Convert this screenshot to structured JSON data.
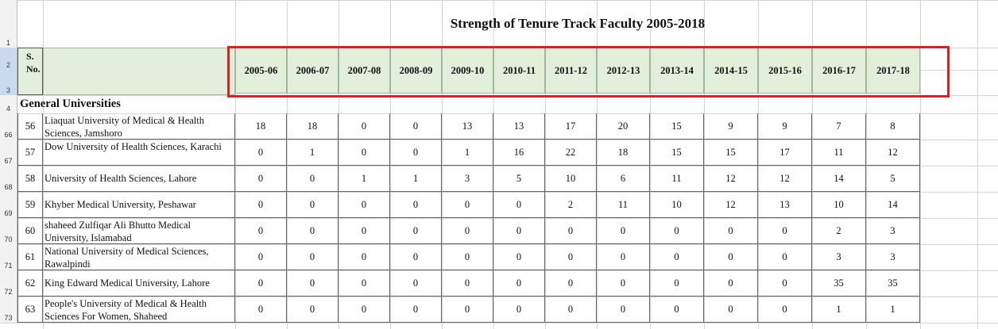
{
  "title": "Strength of  Tenure Track Faculty 2005-2018",
  "header": {
    "sno": "S.\nNo."
  },
  "years": [
    "2005-06",
    "2006-07",
    "2007-08",
    "2008-09",
    "2009-10",
    "2010-11",
    "2011-12",
    "2012-13",
    "2013-14",
    "2014-15",
    "2015-16",
    "2016-17",
    "2017-18"
  ],
  "section": "General Universities",
  "row_numbers": [
    "1",
    "2",
    "3",
    "4",
    "66",
    "67",
    "68",
    "69",
    "70",
    "71",
    "72",
    "73"
  ],
  "rows": [
    {
      "sno": "56",
      "name": "Liaquat University of Medical & Health Sciences, Jamshoro",
      "values": [
        "18",
        "18",
        "0",
        "0",
        "13",
        "13",
        "17",
        "20",
        "15",
        "9",
        "9",
        "7",
        "8"
      ]
    },
    {
      "sno": "57",
      "name": "Dow University of Health Sciences, Karachi",
      "values": [
        "0",
        "1",
        "0",
        "0",
        "1",
        "16",
        "22",
        "18",
        "15",
        "15",
        "17",
        "11",
        "12"
      ]
    },
    {
      "sno": "58",
      "name": "University of Health Sciences, Lahore",
      "values": [
        "0",
        "0",
        "1",
        "1",
        "3",
        "5",
        "10",
        "6",
        "11",
        "12",
        "12",
        "14",
        "5"
      ]
    },
    {
      "sno": "59",
      "name": "Khyber Medical University, Peshawar",
      "values": [
        "0",
        "0",
        "0",
        "0",
        "0",
        "0",
        "2",
        "11",
        "10",
        "12",
        "13",
        "10",
        "14"
      ]
    },
    {
      "sno": "60",
      "name": "shaheed Zulfiqar Ali Bhutto Medical University, Islamabad",
      "values": [
        "0",
        "0",
        "0",
        "0",
        "0",
        "0",
        "0",
        "0",
        "0",
        "0",
        "0",
        "2",
        "3"
      ]
    },
    {
      "sno": "61",
      "name": "National University of Medical Sciences, Rawalpindi",
      "values": [
        "0",
        "0",
        "0",
        "0",
        "0",
        "0",
        "0",
        "0",
        "0",
        "0",
        "0",
        "3",
        "3"
      ]
    },
    {
      "sno": "62",
      "name": "King Edward Medical University, Lahore",
      "values": [
        "0",
        "0",
        "0",
        "0",
        "0",
        "0",
        "0",
        "0",
        "0",
        "0",
        "0",
        "35",
        "35"
      ]
    },
    {
      "sno": "63",
      "name": "People's University of Medical & Health Sciences For Women, Shaheed",
      "values": [
        "0",
        "0",
        "0",
        "0",
        "0",
        "0",
        "0",
        "0",
        "0",
        "0",
        "0",
        "1",
        "1"
      ]
    }
  ],
  "colors": {
    "header_fill": "#e2efda",
    "highlight": "#e02020",
    "gridline": "#d4d4d4"
  }
}
